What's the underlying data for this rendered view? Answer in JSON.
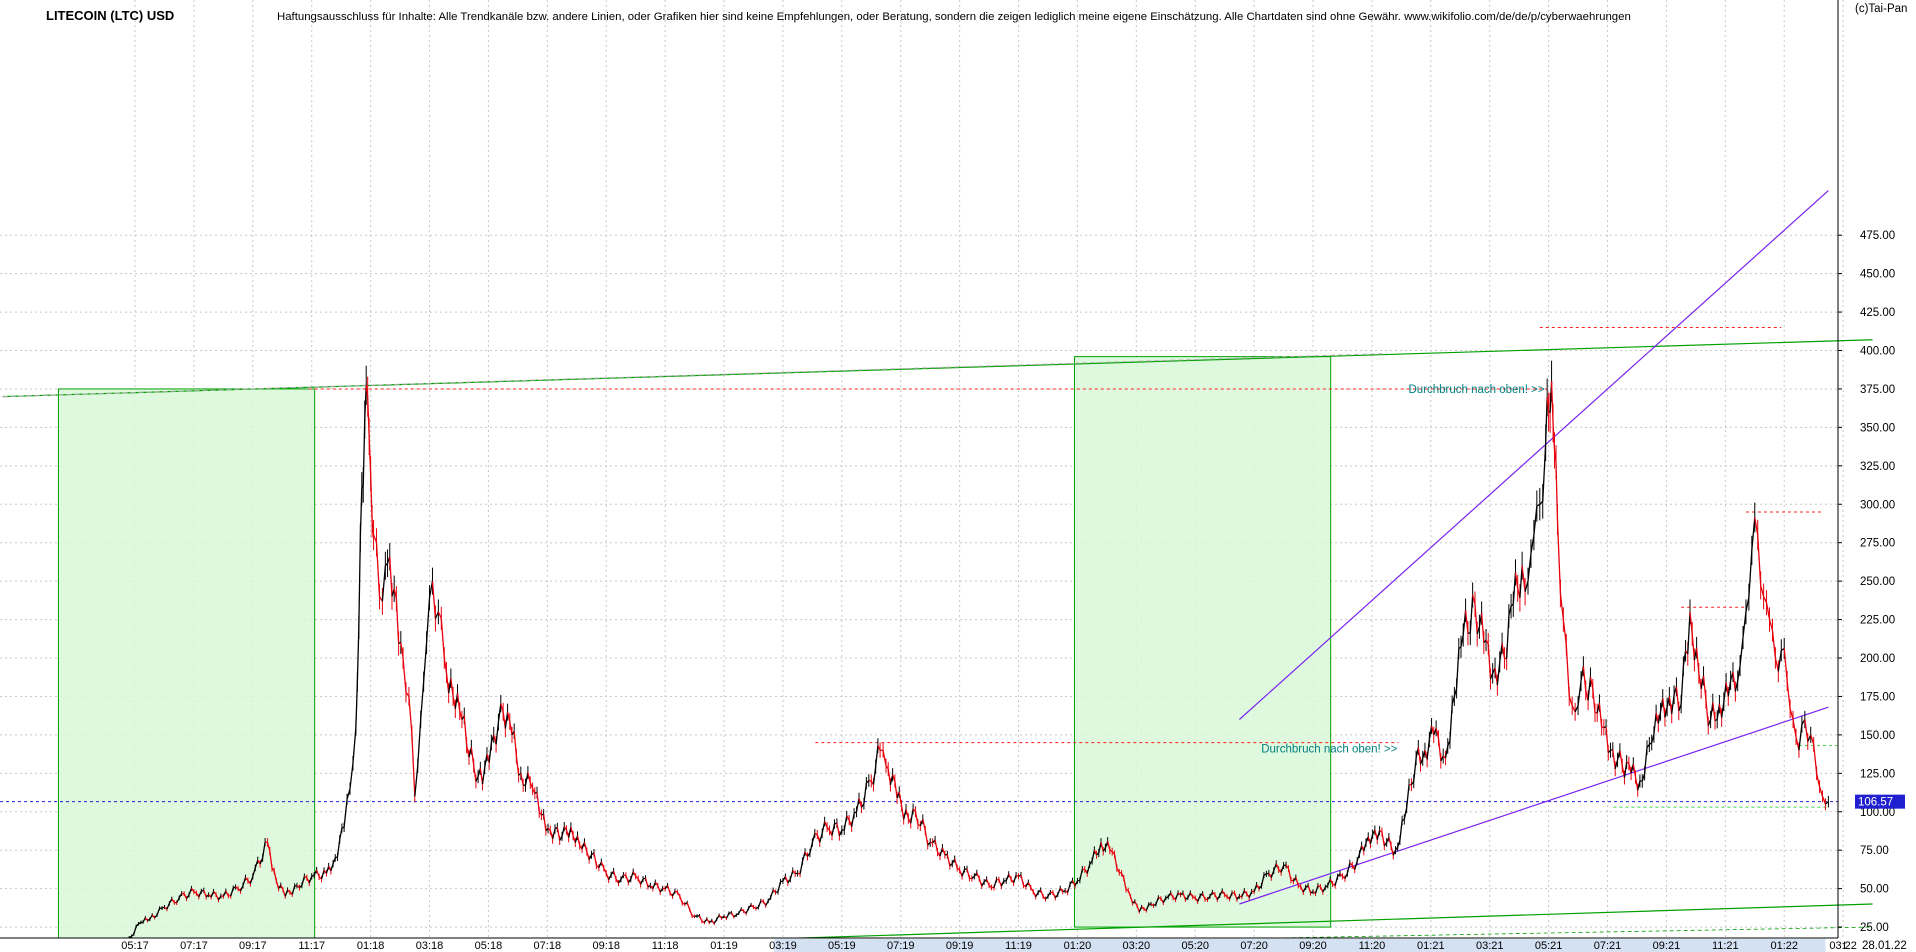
{
  "header": {
    "title": "LITECOIN (LTC) USD",
    "disclaimer": "Haftungsausschluss für Inhalte: Alle Trendkanäle bzw. andere Linien, oder Grafiken hier sind keine Empfehlungen, oder Beratung, sondern die zeigen lediglich meine eigene Einschätzung. Alle Chartdaten sind ohne Gewähr.  www.wikifolio.com/de/de/p/cyberwaehrungen",
    "copyright": "(c)Tai-Pan"
  },
  "colors": {
    "price_down": "#e8000b",
    "price_up": "#000000",
    "trend_channel": "#00a000",
    "resistance": "#ff2020",
    "support_line": "#7a22f0",
    "current_price_line": "#2020d0",
    "zone_fill": "#d8f8d8",
    "annotation_text": "#008080",
    "grid": "#c8c8c8",
    "date_axis_band": "#b0c8e8"
  },
  "chart_data": {
    "type": "line",
    "title": "LITECOIN (LTC) USD",
    "xlabel": "",
    "ylabel": "",
    "x_unit": "months since 01.2017",
    "ylim": [
      0,
      490
    ],
    "y_ticks": [
      "25.00",
      "50.00",
      "75.00",
      "100.00",
      "125.00",
      "150.00",
      "175.00",
      "200.00",
      "225.00",
      "250.00",
      "275.00",
      "300.00",
      "325.00",
      "350.00",
      "375.00",
      "400.00",
      "425.00",
      "450.00",
      "475.00"
    ],
    "y_tick_values": [
      25,
      50,
      75,
      100,
      125,
      150,
      175,
      200,
      225,
      250,
      275,
      300,
      325,
      350,
      375,
      400,
      425,
      450,
      475
    ],
    "x_ticks": [
      {
        "label": "05:17",
        "m": 4.5
      },
      {
        "label": "07:17",
        "m": 6.5
      },
      {
        "label": "09:17",
        "m": 8.5
      },
      {
        "label": "11:17",
        "m": 10.5
      },
      {
        "label": "01:18",
        "m": 12.5
      },
      {
        "label": "03:18",
        "m": 14.5
      },
      {
        "label": "05:18",
        "m": 16.5
      },
      {
        "label": "07:18",
        "m": 18.5
      },
      {
        "label": "09:18",
        "m": 20.5
      },
      {
        "label": "11:18",
        "m": 22.5
      },
      {
        "label": "01:19",
        "m": 24.5
      },
      {
        "label": "03:19",
        "m": 26.5
      },
      {
        "label": "05:19",
        "m": 28.5
      },
      {
        "label": "07:19",
        "m": 30.5
      },
      {
        "label": "09:19",
        "m": 32.5
      },
      {
        "label": "11:19",
        "m": 34.5
      },
      {
        "label": "01:20",
        "m": 36.5
      },
      {
        "label": "03:20",
        "m": 38.5
      },
      {
        "label": "05:20",
        "m": 40.5
      },
      {
        "label": "07:20",
        "m": 42.5
      },
      {
        "label": "09:20",
        "m": 44.5
      },
      {
        "label": "11:20",
        "m": 46.5
      },
      {
        "label": "01:21",
        "m": 48.5
      },
      {
        "label": "03:21",
        "m": 50.5
      },
      {
        "label": "05:21",
        "m": 52.5
      },
      {
        "label": "07:21",
        "m": 54.5
      },
      {
        "label": "09:21",
        "m": 56.5
      },
      {
        "label": "11:21",
        "m": 58.5
      },
      {
        "label": "01:22",
        "m": 60.5
      },
      {
        "label": "03:22",
        "m": 62.5
      }
    ],
    "last_date": "28.01.22",
    "axis_end_marker": "L",
    "current_price": 106.57,
    "current_price_label": "106.57",
    "series": [
      {
        "points": [
          [
            0,
            4
          ],
          [
            1,
            4
          ],
          [
            2,
            4
          ],
          [
            3,
            4
          ],
          [
            3.5,
            6
          ],
          [
            4,
            12
          ],
          [
            4.3,
            18
          ],
          [
            4.7,
            28
          ],
          [
            5,
            30
          ],
          [
            5.5,
            38
          ],
          [
            6,
            44
          ],
          [
            6.5,
            48
          ],
          [
            7,
            46
          ],
          [
            7.5,
            45
          ],
          [
            8,
            50
          ],
          [
            8.5,
            58
          ],
          [
            9,
            80
          ],
          [
            9.3,
            55
          ],
          [
            9.6,
            45
          ],
          [
            10,
            52
          ],
          [
            10.5,
            58
          ],
          [
            11,
            60
          ],
          [
            11.3,
            70
          ],
          [
            11.6,
            90
          ],
          [
            11.8,
            115
          ],
          [
            12,
            155
          ],
          [
            12.1,
            220
          ],
          [
            12.2,
            310
          ],
          [
            12.3,
            355
          ],
          [
            12.4,
            370
          ],
          [
            12.5,
            320
          ],
          [
            12.6,
            280
          ],
          [
            12.8,
            240
          ],
          [
            13,
            260
          ],
          [
            13.3,
            245
          ],
          [
            13.6,
            200
          ],
          [
            13.8,
            175
          ],
          [
            14,
            110
          ],
          [
            14.2,
            160
          ],
          [
            14.4,
            210
          ],
          [
            14.6,
            250
          ],
          [
            14.8,
            230
          ],
          [
            15,
            200
          ],
          [
            15.3,
            175
          ],
          [
            15.6,
            160
          ],
          [
            16,
            130
          ],
          [
            16.3,
            118
          ],
          [
            16.6,
            145
          ],
          [
            17,
            165
          ],
          [
            17.3,
            150
          ],
          [
            17.6,
            125
          ],
          [
            18,
            115
          ],
          [
            18.3,
            98
          ],
          [
            18.6,
            88
          ],
          [
            19,
            84
          ],
          [
            19.3,
            90
          ],
          [
            19.6,
            78
          ],
          [
            20,
            72
          ],
          [
            20.5,
            60
          ],
          [
            21,
            56
          ],
          [
            21.5,
            58
          ],
          [
            22,
            52
          ],
          [
            22.5,
            50
          ],
          [
            23,
            45
          ],
          [
            23.5,
            32
          ],
          [
            24,
            28
          ],
          [
            24.5,
            32
          ],
          [
            25,
            34
          ],
          [
            25.5,
            38
          ],
          [
            26,
            42
          ],
          [
            26.5,
            55
          ],
          [
            27,
            60
          ],
          [
            27.5,
            80
          ],
          [
            28,
            90
          ],
          [
            28.5,
            88
          ],
          [
            29,
            100
          ],
          [
            29.5,
            120
          ],
          [
            29.8,
            140
          ],
          [
            30,
            130
          ],
          [
            30.3,
            120
          ],
          [
            30.6,
            95
          ],
          [
            31,
            100
          ],
          [
            31.5,
            80
          ],
          [
            32,
            72
          ],
          [
            32.5,
            62
          ],
          [
            33,
            58
          ],
          [
            33.5,
            52
          ],
          [
            34,
            55
          ],
          [
            34.5,
            58
          ],
          [
            35,
            48
          ],
          [
            35.5,
            45
          ],
          [
            36,
            48
          ],
          [
            36.5,
            55
          ],
          [
            37,
            68
          ],
          [
            37.3,
            80
          ],
          [
            37.6,
            75
          ],
          [
            38,
            60
          ],
          [
            38.3,
            45
          ],
          [
            38.6,
            35
          ],
          [
            39,
            40
          ],
          [
            39.5,
            44
          ],
          [
            40,
            46
          ],
          [
            40.5,
            44
          ],
          [
            41,
            45
          ],
          [
            41.5,
            46
          ],
          [
            42,
            45
          ],
          [
            42.5,
            48
          ],
          [
            43,
            60
          ],
          [
            43.5,
            65
          ],
          [
            44,
            52
          ],
          [
            44.5,
            48
          ],
          [
            45,
            52
          ],
          [
            45.5,
            58
          ],
          [
            46,
            68
          ],
          [
            46.3,
            80
          ],
          [
            46.6,
            88
          ],
          [
            47,
            80
          ],
          [
            47.3,
            75
          ],
          [
            47.6,
            95
          ],
          [
            48,
            135
          ],
          [
            48.3,
            140
          ],
          [
            48.6,
            150
          ],
          [
            49,
            135
          ],
          [
            49.3,
            175
          ],
          [
            49.6,
            215
          ],
          [
            50,
            235
          ],
          [
            50.3,
            210
          ],
          [
            50.6,
            190
          ],
          [
            51,
            200
          ],
          [
            51.3,
            235
          ],
          [
            51.6,
            260
          ],
          [
            51.8,
            250
          ],
          [
            52,
            280
          ],
          [
            52.2,
            300
          ],
          [
            52.4,
            340
          ],
          [
            52.5,
            360
          ],
          [
            52.6,
            380
          ],
          [
            52.7,
            335
          ],
          [
            52.8,
            290
          ],
          [
            53,
            225
          ],
          [
            53.2,
            175
          ],
          [
            53.4,
            165
          ],
          [
            53.6,
            185
          ],
          [
            54,
            180
          ],
          [
            54.3,
            155
          ],
          [
            54.6,
            140
          ],
          [
            55,
            130
          ],
          [
            55.3,
            125
          ],
          [
            55.6,
            120
          ],
          [
            56,
            145
          ],
          [
            56.3,
            165
          ],
          [
            56.6,
            175
          ],
          [
            57,
            170
          ],
          [
            57.3,
            230
          ],
          [
            57.6,
            190
          ],
          [
            58,
            160
          ],
          [
            58.3,
            170
          ],
          [
            58.6,
            175
          ],
          [
            59,
            195
          ],
          [
            59.2,
            230
          ],
          [
            59.4,
            270
          ],
          [
            59.6,
            280
          ],
          [
            59.8,
            240
          ],
          [
            60,
            225
          ],
          [
            60.2,
            200
          ],
          [
            60.4,
            205
          ],
          [
            60.6,
            185
          ],
          [
            60.8,
            160
          ],
          [
            61,
            140
          ],
          [
            61.2,
            160
          ],
          [
            61.4,
            150
          ],
          [
            61.6,
            125
          ],
          [
            61.8,
            110
          ],
          [
            62,
            106.57
          ]
        ]
      }
    ],
    "annotations": [
      {
        "text": "Durchbruch nach oben! >>",
        "m": 52.5,
        "y": 375
      },
      {
        "text": "Durchbruch nach oben! >>",
        "m": 47.5,
        "y": 141
      }
    ],
    "zones": [
      {
        "m0": 1.9,
        "m1": 10.6,
        "y0": 4,
        "y1": 375
      },
      {
        "m0": 36.4,
        "m1": 45.1,
        "y0": 25,
        "y1": 396
      }
    ],
    "trend_lines": [
      {
        "kind": "channel",
        "p0": [
          0,
          370
        ],
        "p1": [
          63.5,
          407
        ]
      },
      {
        "kind": "channel",
        "p0": [
          1,
          2
        ],
        "p1": [
          63.5,
          40
        ]
      },
      {
        "kind": "channel",
        "p0": [
          1,
          3
        ],
        "p1": [
          63.5,
          25
        ]
      },
      {
        "kind": "support",
        "p0": [
          42,
          40
        ],
        "p1": [
          62,
          168
        ]
      },
      {
        "kind": "support",
        "p0": [
          42,
          160
        ],
        "p1": [
          62,
          504
        ]
      }
    ],
    "resistance_levels": [
      {
        "m0": 10.4,
        "m1": 52.6,
        "y": 375
      },
      {
        "m0": 27.6,
        "m1": 47.4,
        "y": 145
      },
      {
        "m0": 52.2,
        "m1": 60.4,
        "y": 415
      },
      {
        "m0": 57.0,
        "m1": 59.2,
        "y": 233
      },
      {
        "m0": 59.2,
        "m1": 61.8,
        "y": 295
      },
      {
        "m0": 61.0,
        "m1": 62.3,
        "y": 143
      },
      {
        "m0": 54.7,
        "m1": 62.0,
        "y": 103
      }
    ],
    "legend": "none",
    "grid": true
  }
}
